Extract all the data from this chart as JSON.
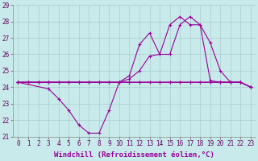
{
  "background_color": "#c8eaea",
  "grid_color": "#aacccc",
  "line_color": "#990099",
  "xlim": [
    -0.5,
    23.5
  ],
  "ylim": [
    21,
    29
  ],
  "yticks": [
    21,
    22,
    23,
    24,
    25,
    26,
    27,
    28,
    29
  ],
  "xticks": [
    0,
    1,
    2,
    3,
    4,
    5,
    6,
    7,
    8,
    9,
    10,
    11,
    12,
    13,
    14,
    15,
    16,
    17,
    18,
    19,
    20,
    21,
    22,
    23
  ],
  "xlabel": "Windchill (Refroidissement éolien,°C)",
  "series1_x": [
    0,
    1,
    2,
    3,
    4,
    5,
    6,
    7,
    8,
    9,
    10,
    11,
    12,
    13,
    14,
    15,
    16,
    17,
    18,
    19,
    20,
    21,
    22,
    23
  ],
  "series1_y": [
    24.3,
    24.3,
    24.3,
    24.3,
    24.3,
    24.3,
    24.3,
    24.3,
    24.3,
    24.3,
    24.3,
    24.3,
    24.3,
    24.3,
    24.3,
    24.3,
    24.3,
    24.3,
    24.3,
    24.3,
    24.3,
    24.3,
    24.3,
    24.0
  ],
  "series2_x": [
    0,
    1,
    2,
    3,
    4,
    5,
    6,
    7,
    8,
    9,
    10,
    11,
    12,
    13,
    14,
    15,
    16,
    17,
    18,
    19,
    20,
    21,
    22,
    23
  ],
  "series2_y": [
    24.3,
    24.3,
    24.3,
    24.3,
    24.3,
    24.3,
    24.3,
    24.3,
    24.3,
    24.3,
    24.3,
    24.5,
    25.0,
    25.9,
    26.0,
    27.8,
    28.3,
    27.8,
    27.8,
    24.4,
    24.3,
    24.3,
    24.3,
    24.0
  ],
  "series3_x": [
    0,
    1,
    2,
    3,
    10,
    11,
    12,
    13,
    14,
    15,
    16,
    17,
    18,
    19,
    20,
    21,
    22,
    23
  ],
  "series3_y": [
    24.3,
    24.3,
    24.3,
    24.3,
    24.3,
    24.7,
    26.6,
    27.3,
    26.0,
    26.0,
    27.8,
    28.3,
    27.8,
    26.7,
    25.0,
    24.3,
    24.3,
    24.0
  ],
  "series4_x": [
    0,
    3,
    4,
    5,
    6,
    7,
    8,
    9,
    10,
    11,
    12,
    13,
    14,
    15,
    16,
    17,
    18,
    19,
    20,
    21,
    22,
    23
  ],
  "series4_y": [
    24.3,
    23.9,
    23.3,
    22.6,
    21.7,
    21.2,
    21.2,
    22.6,
    24.3,
    24.3,
    24.3,
    24.3,
    24.3,
    24.3,
    24.3,
    24.3,
    24.3,
    24.3,
    24.3,
    24.3,
    24.3,
    24.0
  ],
  "tick_fontsize": 5.5,
  "xlabel_fontsize": 6.5
}
